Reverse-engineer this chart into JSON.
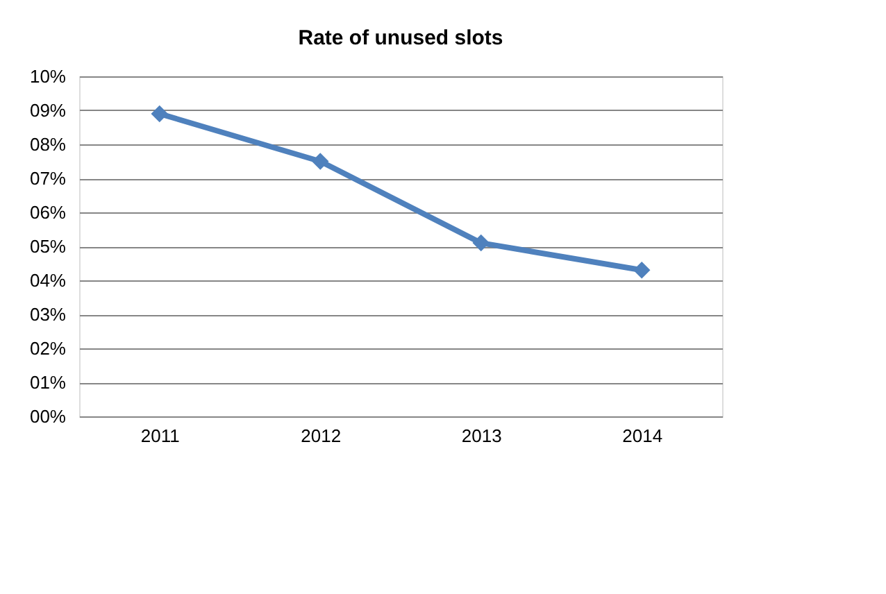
{
  "chart_data": {
    "type": "line",
    "title": "Rate of unused slots",
    "categories": [
      "2011",
      "2012",
      "2013",
      "2014"
    ],
    "series": [
      {
        "color": "#4f81bd",
        "values": [
          8.9,
          7.5,
          5.1,
          4.3
        ]
      }
    ],
    "ylim": [
      0,
      10
    ],
    "yticks": [
      {
        "value": 0,
        "label": "00%"
      },
      {
        "value": 1,
        "label": "01%"
      },
      {
        "value": 2,
        "label": "02%"
      },
      {
        "value": 3,
        "label": "03%"
      },
      {
        "value": 4,
        "label": "04%"
      },
      {
        "value": 5,
        "label": "05%"
      },
      {
        "value": 6,
        "label": "06%"
      },
      {
        "value": 7,
        "label": "07%"
      },
      {
        "value": 8,
        "label": "08%"
      },
      {
        "value": 9,
        "label": "09%"
      },
      {
        "value": 10,
        "label": "10%"
      }
    ],
    "grid": "y",
    "marker": "diamond",
    "line_style": "solid"
  }
}
